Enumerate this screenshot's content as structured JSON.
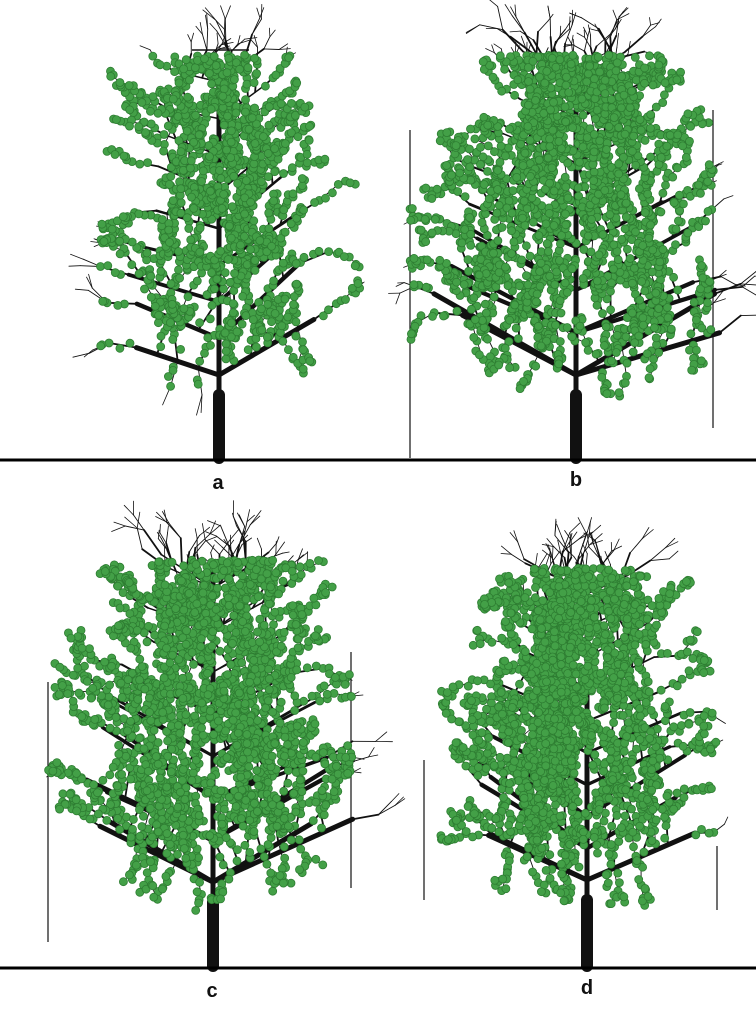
{
  "figure": {
    "colors": {
      "branch": "#111111",
      "leaf_fill": "#43a047",
      "leaf_stroke": "#2e7d32",
      "baseline": "#000000",
      "background": "#ffffff"
    },
    "panels": [
      {
        "id": "a",
        "label": "a"
      },
      {
        "id": "b",
        "label": "b"
      },
      {
        "id": "c",
        "label": "c"
      },
      {
        "id": "d",
        "label": "d"
      }
    ]
  }
}
